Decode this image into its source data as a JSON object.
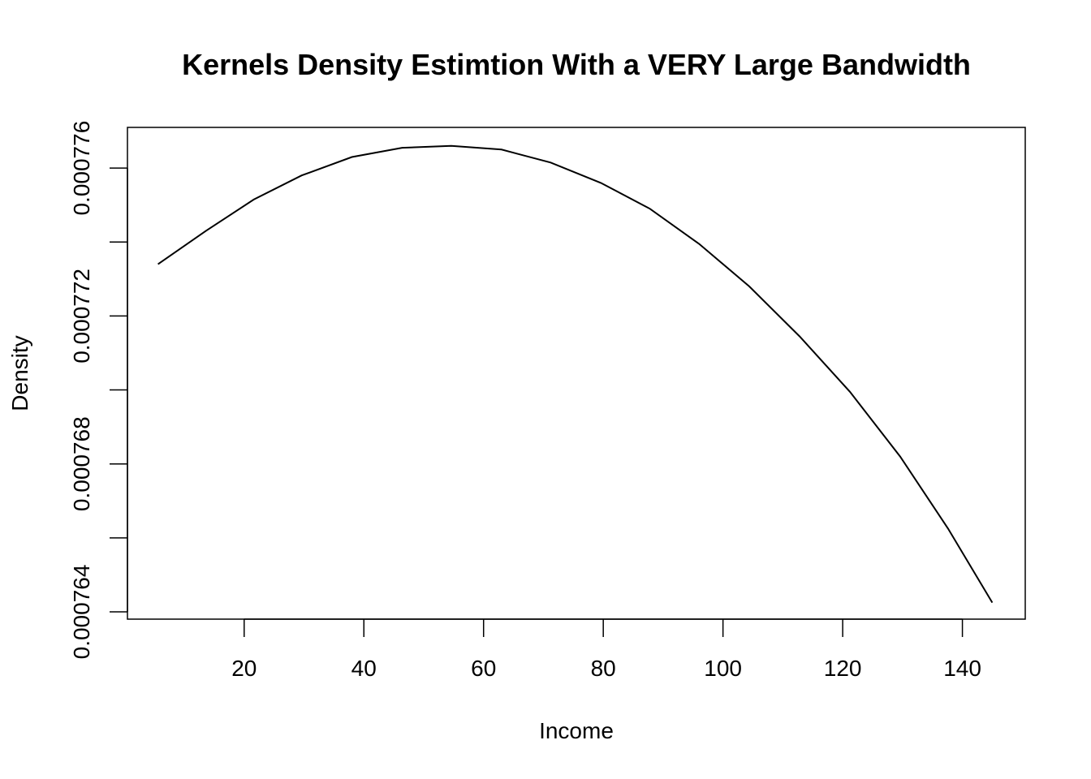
{
  "chart_data": {
    "type": "line",
    "title": "Kernels Density Estimtion With a VERY Large Bandwidth",
    "xlabel": "Income",
    "ylabel": "Density",
    "xlim": [
      0.5,
      150.5
    ],
    "ylim": [
      0.000763802,
      0.0007771
    ],
    "x_ticks": [
      20,
      40,
      60,
      80,
      100,
      120,
      140
    ],
    "x_tick_labels": [
      "20",
      "40",
      "60",
      "80",
      "100",
      "120",
      "140"
    ],
    "y_ticks": [
      0.000764,
      0.000766,
      0.000768,
      0.00077,
      0.000772,
      0.000774,
      0.000776
    ],
    "y_tick_labels": [
      "0.000764",
      "",
      "0.000768",
      "",
      "0.000772",
      "",
      "0.000776"
    ],
    "grid": false,
    "legend": "none",
    "line_color": "#000000",
    "series": [
      {
        "x": [
          5.6,
          13.6,
          21.6,
          29.6,
          38.0,
          46.4,
          54.6,
          63.0,
          71.2,
          79.6,
          87.8,
          96.0,
          104.4,
          112.8,
          121.2,
          129.6,
          137.6,
          145.0
        ],
        "values": [
          0.0007734,
          0.0007743,
          0.00077515,
          0.0007758,
          0.0007763,
          0.00077655,
          0.0007766,
          0.0007765,
          0.00077615,
          0.0007756,
          0.0007749,
          0.00077395,
          0.0007728,
          0.00077145,
          0.00076995,
          0.0007682,
          0.00076625,
          0.00076425
        ]
      }
    ]
  }
}
